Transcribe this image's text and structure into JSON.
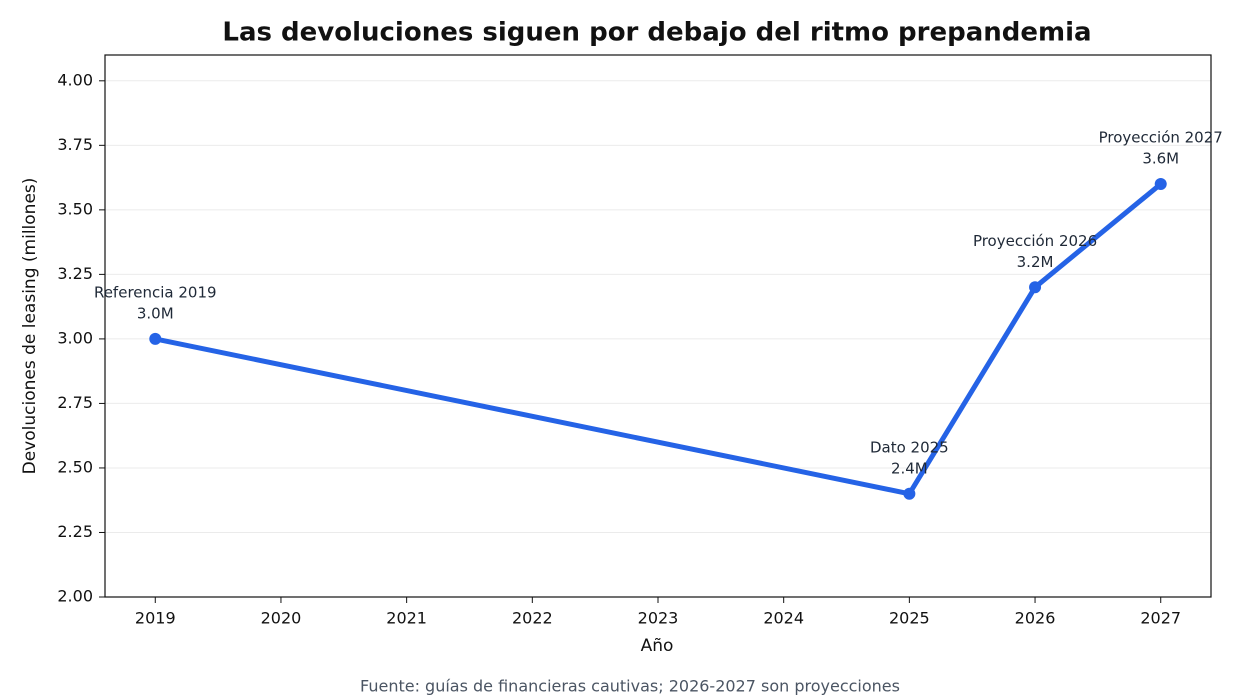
{
  "chart_data": {
    "type": "line",
    "title": "Las devoluciones siguen por debajo del ritmo prepandemia",
    "x_label": "Año",
    "y_label": "Devoluciones de leasing (millones)",
    "source": "Fuente: guías de financieras cautivas; 2026-2027 son proyecciones",
    "x": [
      2019,
      2025,
      2026,
      2027
    ],
    "series": [
      {
        "name": "Devoluciones de leasing",
        "color": "#2563e6",
        "values": [
          3.0,
          2.4,
          3.2,
          3.6
        ],
        "value_labels": [
          "3.0M",
          "2.4M",
          "3.2M",
          "3.6M"
        ],
        "point_labels": [
          "Referencia 2019",
          "Dato 2025",
          "Proyección 2026",
          "Proyección 2027"
        ]
      }
    ],
    "xlim": [
      2018.6,
      2027.4
    ],
    "xticks": [
      2019,
      2020,
      2021,
      2022,
      2023,
      2024,
      2025,
      2026,
      2027
    ],
    "ylim": [
      2.0,
      4.1
    ],
    "yticks": [
      {
        "value": 2.0,
        "label": "2.00"
      },
      {
        "value": 2.25,
        "label": "2.25"
      },
      {
        "value": 2.5,
        "label": "2.50"
      },
      {
        "value": 2.75,
        "label": "2.75"
      },
      {
        "value": 3.0,
        "label": "3.00"
      },
      {
        "value": 3.25,
        "label": "3.25"
      },
      {
        "value": 3.5,
        "label": "3.50"
      },
      {
        "value": 3.75,
        "label": "3.75"
      },
      {
        "value": 4.0,
        "label": "4.00"
      }
    ],
    "grid": "y"
  }
}
